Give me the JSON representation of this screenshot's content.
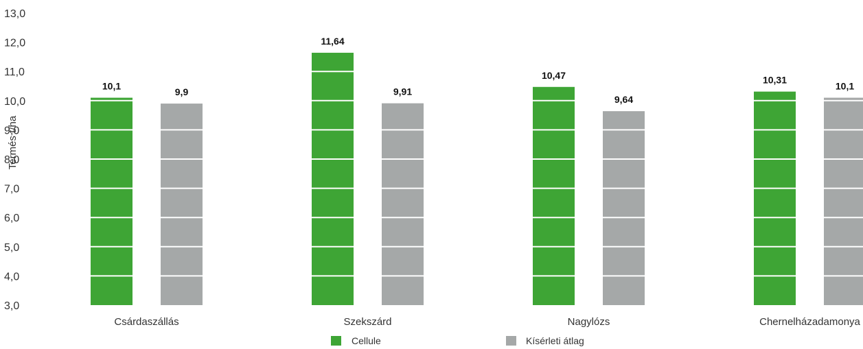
{
  "chart_data": {
    "type": "bar",
    "ylabel": "Termés t/ha",
    "ylim": [
      3.0,
      13.0
    ],
    "yticks": [
      "3,0",
      "4,0",
      "5,0",
      "6,0",
      "7,0",
      "8,0",
      "9,0",
      "10,0",
      "11,0",
      "12,0",
      "13,0"
    ],
    "categories": [
      "Csárdaszállás",
      "Szekszárd",
      "Nagylózs",
      "Chernelházadamonya"
    ],
    "series": [
      {
        "name": "Cellule",
        "color": "#3ea535",
        "values": [
          10.1,
          11.64,
          10.47,
          10.31
        ],
        "labels": [
          "10,1",
          "11,64",
          "10,47",
          "10,31"
        ]
      },
      {
        "name": "Kísérleti átlag",
        "color": "#a5a8a8",
        "values": [
          9.9,
          9.91,
          9.64,
          10.1
        ],
        "labels": [
          "9,9",
          "9,91",
          "9,64",
          "10,1"
        ]
      }
    ],
    "legend": "bottom-center",
    "grid": false
  }
}
